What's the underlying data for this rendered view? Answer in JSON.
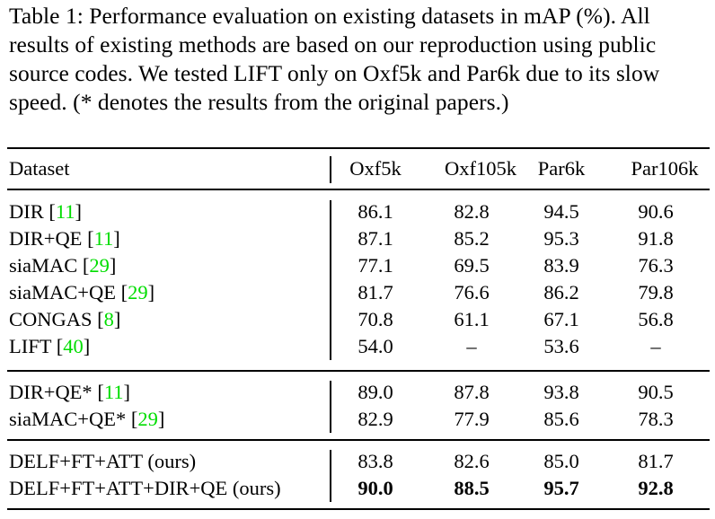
{
  "caption": "Table 1: Performance evaluation on existing datasets in mAP (%). All results of existing methods are based on our reproduction using public source codes. We tested LIFT only on Oxf5k and Par6k due to its slow speed. (* denotes the results from the original papers.)",
  "colors": {
    "citation": "#00dd00"
  },
  "header": [
    "Dataset",
    "Oxf5k",
    "Oxf105k",
    "Par6k",
    "Par106k"
  ],
  "groups": [
    [
      {
        "method": "DIR",
        "cite": "11",
        "values": [
          "86.1",
          "82.8",
          "94.5",
          "90.6"
        ]
      },
      {
        "method": "DIR+QE",
        "cite": "11",
        "values": [
          "87.1",
          "85.2",
          "95.3",
          "91.8"
        ]
      },
      {
        "method": "siaMAC",
        "cite": "29",
        "values": [
          "77.1",
          "69.5",
          "83.9",
          "76.3"
        ]
      },
      {
        "method": "siaMAC+QE",
        "cite": "29",
        "values": [
          "81.7",
          "76.6",
          "86.2",
          "79.8"
        ]
      },
      {
        "method": "CONGAS",
        "cite": "8",
        "values": [
          "70.8",
          "61.1",
          "67.1",
          "56.8"
        ]
      },
      {
        "method": "LIFT",
        "cite": "40",
        "values": [
          "54.0",
          "–",
          "53.6",
          "–"
        ]
      }
    ],
    [
      {
        "method": "DIR+QE*",
        "cite": "11",
        "values": [
          "89.0",
          "87.8",
          "93.8",
          "90.5"
        ]
      },
      {
        "method": "siaMAC+QE*",
        "cite": "29",
        "values": [
          "82.9",
          "77.9",
          "85.6",
          "78.3"
        ]
      }
    ],
    [
      {
        "method": "DELF+FT+ATT (ours)",
        "cite": null,
        "values": [
          "83.8",
          "82.6",
          "85.0",
          "81.7"
        ]
      },
      {
        "method": "DELF+FT+ATT+DIR+QE (ours)",
        "cite": null,
        "values": [
          "90.0",
          "88.5",
          "95.7",
          "92.8"
        ],
        "bold": true
      }
    ]
  ]
}
